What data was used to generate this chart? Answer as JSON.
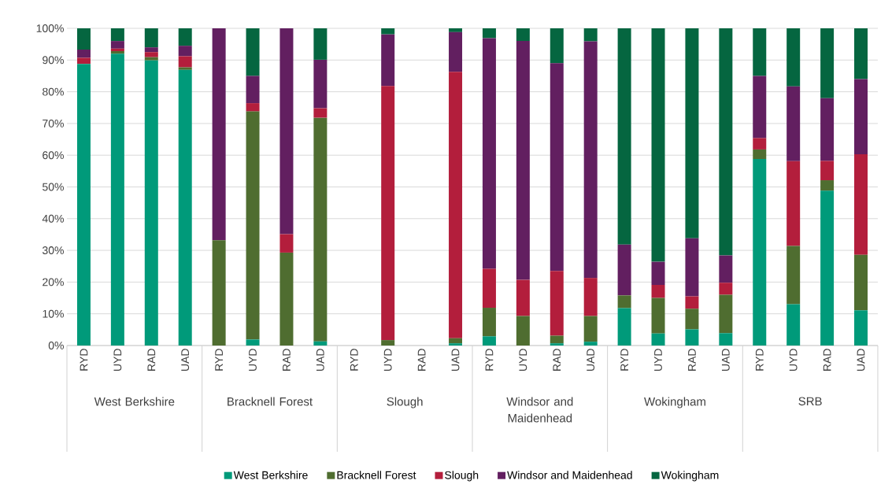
{
  "chart_data": {
    "type": "bar",
    "stacked": true,
    "categories": [
      "RYD",
      "UYD",
      "RAD",
      "UAD",
      "RYD",
      "UYD",
      "RAD",
      "UAD",
      "RYD",
      "UYD",
      "RAD",
      "UAD",
      "RYD",
      "UYD",
      "RAD",
      "UAD",
      "RYD",
      "UYD",
      "RAD",
      "UAD",
      "RYD",
      "UYD",
      "RAD",
      "UAD"
    ],
    "annotations": [
      "West Berkshire",
      "Bracknell Forest",
      "Slough",
      "Windsor and Maidenhead",
      "Wokingham",
      "SRB"
    ],
    "series": [
      {
        "name": "West Berkshire",
        "color": "#009a7a",
        "values": [
          88.8,
          92.0,
          89.9,
          86.9,
          0,
          1.9,
          0,
          1.3,
          null,
          0,
          null,
          0.7,
          2.9,
          0,
          0.7,
          1.2,
          11.8,
          3.8,
          5.1,
          3.9,
          58.8,
          13.0,
          48.8,
          11.1
        ]
      },
      {
        "name": "Bracknell Forest",
        "color": "#4f6d30",
        "values": [
          0,
          0.8,
          1.0,
          0.8,
          33.2,
          71.9,
          29.3,
          70.5,
          null,
          1.7,
          null,
          1.6,
          9.0,
          9.3,
          2.4,
          8.1,
          4.0,
          11.2,
          6.5,
          12.1,
          3.0,
          18.4,
          3.3,
          17.5
        ]
      },
      {
        "name": "Slough",
        "color": "#b31e3c",
        "values": [
          1.9,
          0.8,
          1.6,
          3.5,
          0,
          2.6,
          5.8,
          3.0,
          null,
          80.1,
          null,
          84.0,
          12.3,
          11.4,
          20.4,
          12.0,
          0,
          4.1,
          3.9,
          3.8,
          3.6,
          26.7,
          6.1,
          31.7
        ]
      },
      {
        "name": "Windsor and Maidenhead",
        "color": "#621f60",
        "values": [
          2.6,
          2.4,
          1.5,
          3.3,
          66.8,
          8.6,
          64.9,
          15.3,
          null,
          16.3,
          null,
          12.5,
          72.7,
          75.3,
          65.5,
          74.6,
          16.0,
          7.3,
          18.3,
          8.6,
          19.6,
          23.6,
          19.8,
          23.7
        ]
      },
      {
        "name": "Wokingham",
        "color": "#056640",
        "values": [
          6.7,
          4.0,
          6.0,
          5.5,
          0,
          15.0,
          0,
          9.9,
          null,
          1.9,
          null,
          1.2,
          3.1,
          4.0,
          11.0,
          4.1,
          68.2,
          73.6,
          66.2,
          71.6,
          15.0,
          18.3,
          22.0,
          16.0
        ]
      }
    ],
    "ylim": [
      0,
      100
    ],
    "yticks": [
      {
        "value": 0,
        "label": "0%"
      },
      {
        "value": 10,
        "label": "10%"
      },
      {
        "value": 20,
        "label": "20%"
      },
      {
        "value": 30,
        "label": "30%"
      },
      {
        "value": 40,
        "label": "40%"
      },
      {
        "value": 50,
        "label": "50%"
      },
      {
        "value": 60,
        "label": "60%"
      },
      {
        "value": 70,
        "label": "70%"
      },
      {
        "value": 80,
        "label": "80%"
      },
      {
        "value": 90,
        "label": "90%"
      },
      {
        "value": 100,
        "label": "100%"
      }
    ],
    "grid": "y",
    "legend": "bottom"
  }
}
